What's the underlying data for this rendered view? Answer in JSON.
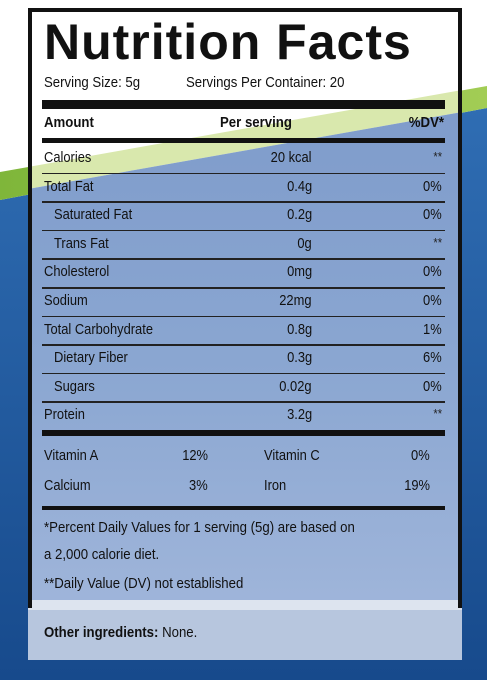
{
  "title": "Nutrition Facts",
  "serving_size": "Serving Size: 5g",
  "servings_per_container": "Servings Per Container: 20",
  "header": {
    "amount": "Amount",
    "per_serving": "Per serving",
    "dv": "%DV*"
  },
  "rows": [
    {
      "name": "Calories",
      "amount": "20 kcal",
      "dv": "**",
      "indent": false
    },
    {
      "name": "Total Fat",
      "amount": "0.4g",
      "dv": "0%",
      "indent": false
    },
    {
      "name": "Saturated Fat",
      "amount": "0.2g",
      "dv": "0%",
      "indent": true
    },
    {
      "name": "Trans Fat",
      "amount": "0g",
      "dv": "**",
      "indent": true
    },
    {
      "name": "Cholesterol",
      "amount": "0mg",
      "dv": "0%",
      "indent": false
    },
    {
      "name": "Sodium",
      "amount": "22mg",
      "dv": "0%",
      "indent": false
    },
    {
      "name": "Total Carbohydrate",
      "amount": "0.8g",
      "dv": "1%",
      "indent": false
    },
    {
      "name": "Dietary Fiber",
      "amount": "0.3g",
      "dv": "6%",
      "indent": true
    },
    {
      "name": "Sugars",
      "amount": "0.02g",
      "dv": "0%",
      "indent": true
    },
    {
      "name": "Protein",
      "amount": "3.2g",
      "dv": "**",
      "indent": false
    }
  ],
  "vitamins": [
    {
      "name1": "Vitamin A",
      "val1": "12%",
      "name2": "Vitamin C",
      "val2": "0%"
    },
    {
      "name1": "Calcium",
      "val1": "3%",
      "name2": "Iron",
      "val2": "19%"
    }
  ],
  "footnotes": {
    "line1": "*Percent Daily Values for 1 serving (5g) are based on",
    "line2": "a 2,000 calorie diet.",
    "line3": "**Daily Value (DV) not established"
  },
  "other_ingredients": {
    "label": "Other ingredients:",
    "value": "None."
  },
  "colors": {
    "blue_dark": "#17498a",
    "blue_mid": "#2e6bb0",
    "blue_light": "#8fa9d1",
    "green": "#8dbf3f",
    "green_light": "#d7e6a9",
    "panel": "#b7c6de"
  }
}
